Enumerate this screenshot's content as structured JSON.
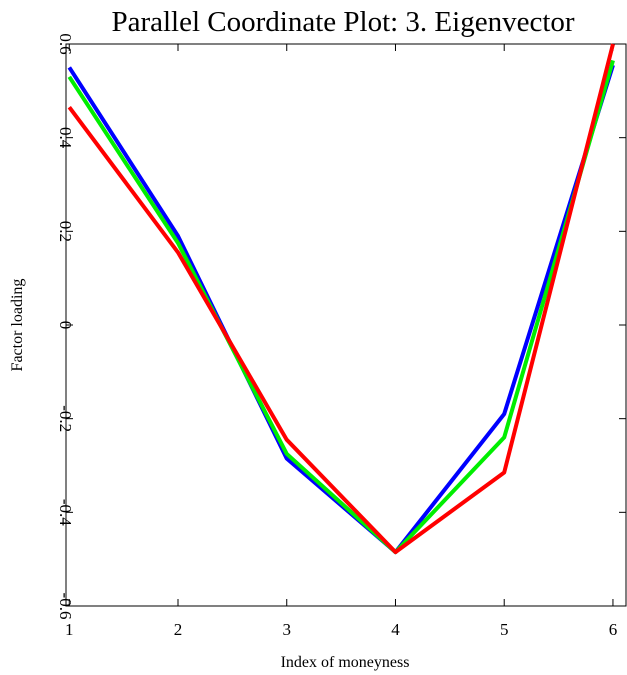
{
  "chart_data": {
    "type": "line",
    "title": "Parallel Coordinate Plot: 3. Eigenvector",
    "xlabel": "Index of moneyness",
    "ylabel": "Factor loading",
    "x": [
      1,
      2,
      3,
      4,
      5,
      6
    ],
    "x_tick_labels": [
      "1",
      "2",
      "3",
      "4",
      "5",
      "6"
    ],
    "xlim": [
      0.97,
      6.12
    ],
    "y_ticks": [
      -0.6,
      -0.4,
      -0.2,
      0,
      0.2,
      0.4,
      0.6
    ],
    "y_tick_labels": [
      "-0.6",
      "-0.4",
      "-0.2",
      "0",
      "0.2",
      "0.4",
      "0.6"
    ],
    "ylim": [
      -0.6,
      0.6
    ],
    "grid": false,
    "series": [
      {
        "color": "#0000ff",
        "values": [
          0.55,
          0.19,
          -0.285,
          -0.485,
          -0.19,
          0.555
        ]
      },
      {
        "color": "#00ee00",
        "values": [
          0.53,
          0.175,
          -0.275,
          -0.485,
          -0.24,
          0.565
        ]
      },
      {
        "color": "#ff0000",
        "values": [
          0.465,
          0.155,
          -0.245,
          -0.485,
          -0.315,
          0.6
        ]
      }
    ]
  }
}
